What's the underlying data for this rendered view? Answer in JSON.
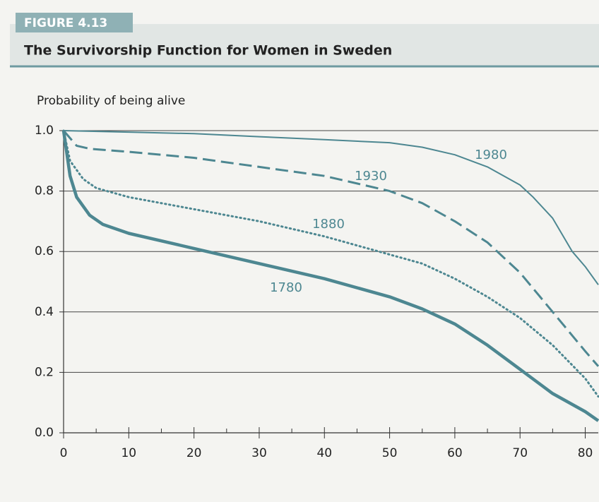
{
  "figure_label": "FIGURE 4.13",
  "chart_data": {
    "type": "line",
    "title": "The Survivorship Function for Women in Sweden",
    "y_label": "Probability of being alive",
    "xlim": [
      0,
      82
    ],
    "ylim": [
      0,
      1
    ],
    "xticks": [
      0,
      10,
      20,
      30,
      40,
      50,
      60,
      70,
      80
    ],
    "xticks_minor": [
      5,
      15,
      25,
      35,
      45,
      55,
      65,
      75
    ],
    "yticks": [
      {
        "value": 0,
        "label": "0.0"
      },
      0.2,
      0.4,
      0.6,
      0.8,
      {
        "value": 1,
        "label": "1.0"
      }
    ],
    "grid": true,
    "series": [
      {
        "name": "1980",
        "color": "#4d8791",
        "style": "solid",
        "line_width": 2,
        "x": [
          0,
          10,
          20,
          30,
          40,
          50,
          55,
          60,
          65,
          70,
          72,
          75,
          78,
          80,
          82
        ],
        "values": [
          1.0,
          0.995,
          0.99,
          0.98,
          0.97,
          0.96,
          0.945,
          0.92,
          0.88,
          0.82,
          0.78,
          0.71,
          0.6,
          0.55,
          0.49
        ]
      },
      {
        "name": "1930",
        "color": "#4d8791",
        "style": "dashed",
        "line_width": 3,
        "x": [
          0,
          2,
          4,
          10,
          20,
          30,
          40,
          50,
          55,
          60,
          65,
          70,
          75,
          80,
          82
        ],
        "values": [
          1.0,
          0.95,
          0.94,
          0.93,
          0.91,
          0.88,
          0.85,
          0.8,
          0.76,
          0.7,
          0.63,
          0.53,
          0.4,
          0.27,
          0.22
        ]
      },
      {
        "name": "1880",
        "color": "#4d8791",
        "style": "dotted",
        "line_width": 3,
        "x": [
          0,
          1,
          3,
          5,
          10,
          20,
          30,
          40,
          50,
          55,
          60,
          65,
          70,
          75,
          80,
          82
        ],
        "values": [
          1.0,
          0.9,
          0.84,
          0.81,
          0.78,
          0.74,
          0.7,
          0.65,
          0.59,
          0.56,
          0.51,
          0.45,
          0.38,
          0.29,
          0.18,
          0.12
        ]
      },
      {
        "name": "1780",
        "color": "#4d8791",
        "style": "solid",
        "line_width": 4.5,
        "x": [
          0,
          1,
          2,
          4,
          6,
          10,
          20,
          30,
          40,
          50,
          55,
          60,
          65,
          70,
          75,
          80,
          82
        ],
        "values": [
          1.0,
          0.85,
          0.78,
          0.72,
          0.69,
          0.66,
          0.61,
          0.56,
          0.51,
          0.45,
          0.41,
          0.36,
          0.29,
          0.21,
          0.13,
          0.07,
          0.04
        ]
      }
    ]
  }
}
